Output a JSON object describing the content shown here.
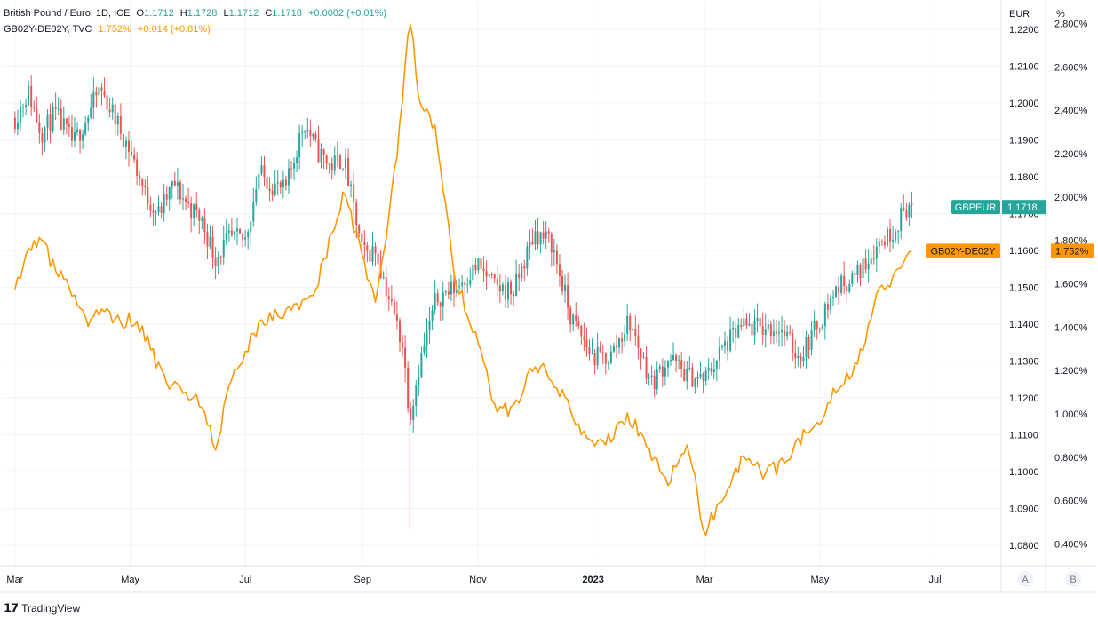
{
  "legend": {
    "primary": {
      "name": "British Pound / Euro, 1D, ICE",
      "o_label": "O",
      "o": "1.1712",
      "h_label": "H",
      "h": "1.1728",
      "l_label": "L",
      "l": "1.1712",
      "c_label": "C",
      "c": "1.1718",
      "change": "+0.0002 (+0.01%)"
    },
    "secondary": {
      "name": "GB02Y-DE02Y, TVC",
      "value": "1.752%",
      "change": "+0.014 (+0.81%)"
    }
  },
  "axes": {
    "left_unit": "EUR",
    "right_unit": "%",
    "scale_buttons": [
      "A",
      "B"
    ]
  },
  "labels": {
    "gbpeur_name": "GBPEUR",
    "gbpeur_value": "1.1718",
    "spread_name": "GB02Y-DE02Y",
    "spread_value": "1.752%"
  },
  "branding": {
    "logo_text": "TradingView"
  },
  "colors": {
    "up": "#26a69a",
    "down": "#ef5350",
    "spread": "#ff9800",
    "grid": "#f0f3fa",
    "text": "#131722",
    "axis_text": "#131722"
  },
  "chart_data": {
    "type": "candlestick+line",
    "x_ticks": [
      "Mar",
      "May",
      "Jul",
      "Sep",
      "Nov",
      "2023",
      "Mar",
      "May",
      "Jul"
    ],
    "eur_ticks": [
      "1.2200",
      "1.2100",
      "1.2000",
      "1.1900",
      "1.1800",
      "1.1700",
      "1.1600",
      "1.1500",
      "1.1400",
      "1.1300",
      "1.1200",
      "1.1100",
      "1.1000",
      "1.0900",
      "1.0800"
    ],
    "eur_range": [
      1.0745,
      1.2275
    ],
    "pct_ticks": [
      "2.800%",
      "2.600%",
      "2.400%",
      "2.200%",
      "2.000%",
      "1.800%",
      "1.600%",
      "1.400%",
      "1.200%",
      "1.000%",
      "0.800%",
      "0.600%",
      "0.400%"
    ],
    "pct_range": [
      0.3,
      2.9
    ],
    "gbpeur_close_path": [
      [
        "2022-03-01",
        1.196
      ],
      [
        "2022-03-08",
        1.203
      ],
      [
        "2022-03-15",
        1.192
      ],
      [
        "2022-03-22",
        1.197
      ],
      [
        "2022-04-01",
        1.189
      ],
      [
        "2022-04-08",
        1.196
      ],
      [
        "2022-04-15",
        1.204
      ],
      [
        "2022-04-22",
        1.197
      ],
      [
        "2022-05-01",
        1.187
      ],
      [
        "2022-05-09",
        1.175
      ],
      [
        "2022-05-16",
        1.17
      ],
      [
        "2022-05-24",
        1.178
      ],
      [
        "2022-06-01",
        1.172
      ],
      [
        "2022-06-08",
        1.168
      ],
      [
        "2022-06-15",
        1.158
      ],
      [
        "2022-06-22",
        1.163
      ],
      [
        "2022-07-01",
        1.163
      ],
      [
        "2022-07-08",
        1.181
      ],
      [
        "2022-07-15",
        1.178
      ],
      [
        "2022-07-22",
        1.176
      ],
      [
        "2022-08-01",
        1.195
      ],
      [
        "2022-08-08",
        1.187
      ],
      [
        "2022-08-15",
        1.183
      ],
      [
        "2022-08-22",
        1.185
      ],
      [
        "2022-09-01",
        1.159
      ],
      [
        "2022-09-08",
        1.16
      ],
      [
        "2022-09-15",
        1.147
      ],
      [
        "2022-09-22",
        1.135
      ],
      [
        "2022-09-26",
        1.115
      ],
      [
        "2022-10-01",
        1.129
      ],
      [
        "2022-10-10",
        1.147
      ],
      [
        "2022-10-20",
        1.15
      ],
      [
        "2022-11-01",
        1.156
      ],
      [
        "2022-11-10",
        1.15
      ],
      [
        "2022-11-20",
        1.149
      ],
      [
        "2022-12-01",
        1.165
      ],
      [
        "2022-12-10",
        1.162
      ],
      [
        "2022-12-20",
        1.142
      ],
      [
        "2023-01-01",
        1.131
      ],
      [
        "2023-01-10",
        1.131
      ],
      [
        "2023-01-20",
        1.141
      ],
      [
        "2023-02-01",
        1.124
      ],
      [
        "2023-02-10",
        1.131
      ],
      [
        "2023-02-20",
        1.126
      ],
      [
        "2023-03-01",
        1.125
      ],
      [
        "2023-03-10",
        1.133
      ],
      [
        "2023-03-20",
        1.139
      ],
      [
        "2023-04-01",
        1.139
      ],
      [
        "2023-04-10",
        1.139
      ],
      [
        "2023-04-20",
        1.131
      ],
      [
        "2023-05-01",
        1.141
      ],
      [
        "2023-05-10",
        1.15
      ],
      [
        "2023-05-20",
        1.153
      ],
      [
        "2023-06-01",
        1.162
      ],
      [
        "2023-06-08",
        1.165
      ],
      [
        "2023-06-16",
        1.172
      ],
      [
        "2023-06-20",
        1.1718
      ]
    ],
    "spread_path": [
      [
        "2022-03-01",
        1.61
      ],
      [
        "2022-03-08",
        1.73
      ],
      [
        "2022-03-15",
        1.81
      ],
      [
        "2022-03-22",
        1.66
      ],
      [
        "2022-04-01",
        1.56
      ],
      [
        "2022-04-08",
        1.41
      ],
      [
        "2022-04-15",
        1.49
      ],
      [
        "2022-04-22",
        1.42
      ],
      [
        "2022-05-01",
        1.43
      ],
      [
        "2022-05-09",
        1.36
      ],
      [
        "2022-05-16",
        1.21
      ],
      [
        "2022-05-24",
        1.12
      ],
      [
        "2022-06-01",
        1.08
      ],
      [
        "2022-06-08",
        1.05
      ],
      [
        "2022-06-15",
        0.83
      ],
      [
        "2022-06-22",
        1.1
      ],
      [
        "2022-07-01",
        1.3
      ],
      [
        "2022-07-08",
        1.39
      ],
      [
        "2022-07-15",
        1.44
      ],
      [
        "2022-07-22",
        1.47
      ],
      [
        "2022-08-01",
        1.51
      ],
      [
        "2022-08-08",
        1.61
      ],
      [
        "2022-08-15",
        1.81
      ],
      [
        "2022-08-22",
        2.01
      ],
      [
        "2022-09-01",
        1.73
      ],
      [
        "2022-09-08",
        1.49
      ],
      [
        "2022-09-15",
        1.89
      ],
      [
        "2022-09-22",
        2.43
      ],
      [
        "2022-09-26",
        2.86
      ],
      [
        "2022-10-01",
        2.43
      ],
      [
        "2022-10-10",
        2.3
      ],
      [
        "2022-10-20",
        1.63
      ],
      [
        "2022-11-01",
        1.33
      ],
      [
        "2022-11-10",
        1.03
      ],
      [
        "2022-11-20",
        1.02
      ],
      [
        "2022-12-01",
        1.23
      ],
      [
        "2022-12-10",
        1.18
      ],
      [
        "2022-12-20",
        1.01
      ],
      [
        "2023-01-01",
        0.84
      ],
      [
        "2023-01-10",
        0.88
      ],
      [
        "2023-01-20",
        0.99
      ],
      [
        "2023-02-01",
        0.82
      ],
      [
        "2023-02-10",
        0.68
      ],
      [
        "2023-02-20",
        0.87
      ],
      [
        "2023-03-01",
        0.45
      ],
      [
        "2023-03-10",
        0.61
      ],
      [
        "2023-03-20",
        0.78
      ],
      [
        "2023-04-01",
        0.73
      ],
      [
        "2023-04-10",
        0.76
      ],
      [
        "2023-04-20",
        0.88
      ],
      [
        "2023-05-01",
        0.95
      ],
      [
        "2023-05-10",
        1.14
      ],
      [
        "2023-05-20",
        1.21
      ],
      [
        "2023-06-01",
        1.55
      ],
      [
        "2023-06-08",
        1.6
      ],
      [
        "2023-06-16",
        1.72
      ],
      [
        "2023-06-20",
        1.752
      ]
    ]
  }
}
